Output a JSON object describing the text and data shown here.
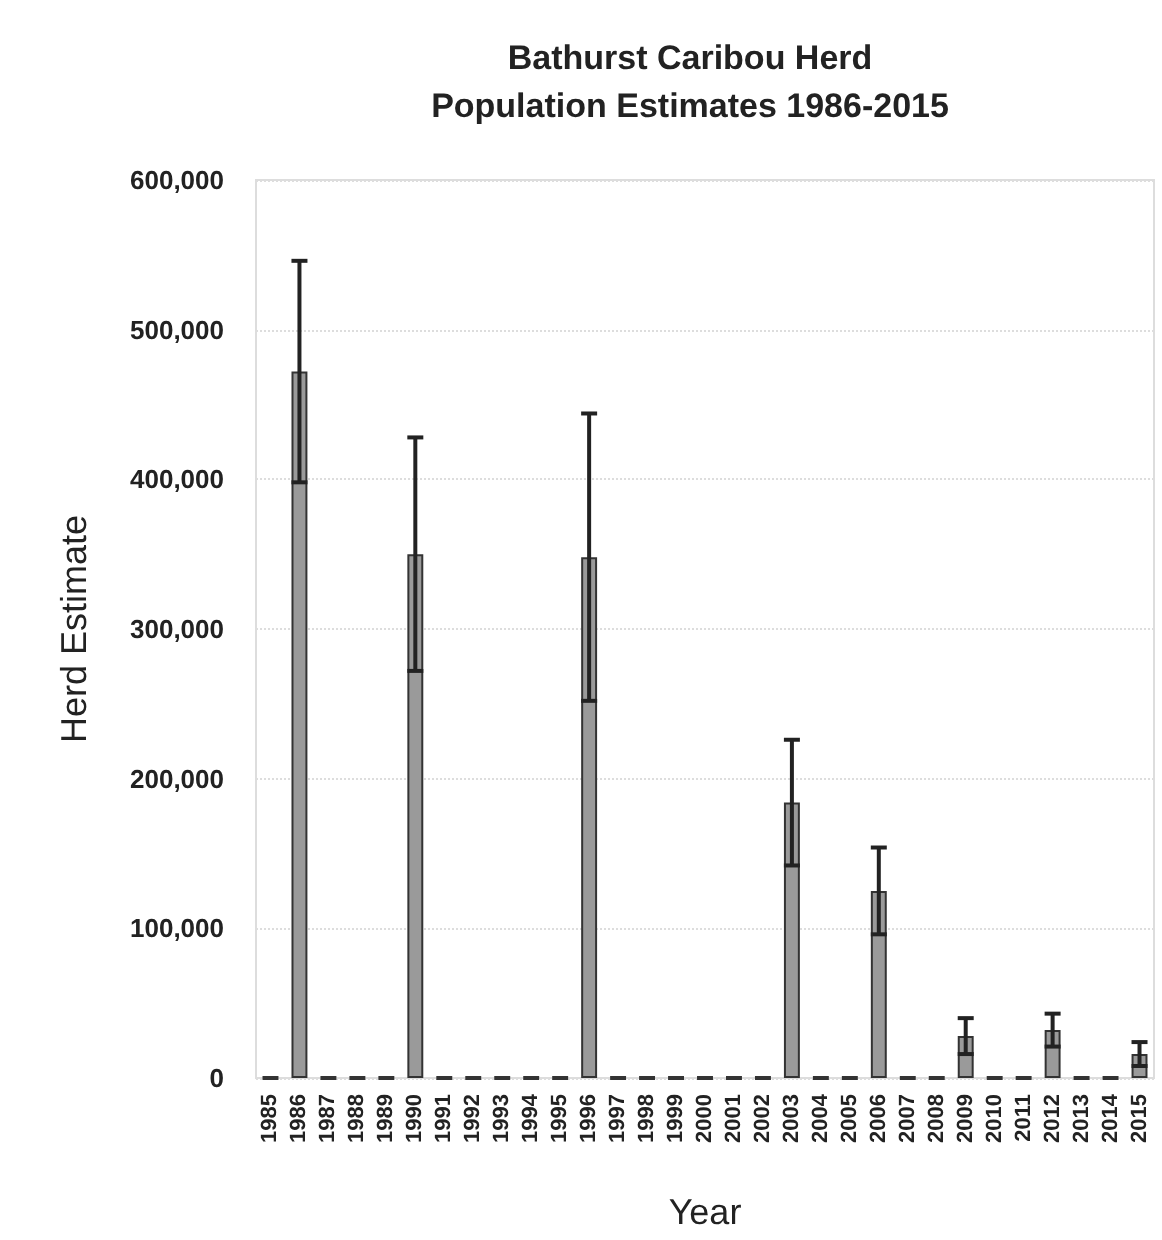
{
  "chart_data": {
    "type": "bar",
    "title": "Bathurst Caribou Herd\nPopulation Estimates 1986-2015",
    "xlabel": "Year",
    "ylabel": "Herd Estimate",
    "categories": [
      "1985",
      "1986",
      "1987",
      "1988",
      "1989",
      "1990",
      "1991",
      "1992",
      "1993",
      "1994",
      "1995",
      "1996",
      "1997",
      "1998",
      "1999",
      "2000",
      "2001",
      "2002",
      "2003",
      "2004",
      "2005",
      "2006",
      "2007",
      "2008",
      "2009",
      "2010",
      "2011",
      "2012",
      "2013",
      "2014",
      "2015"
    ],
    "values": [
      0,
      472000,
      0,
      0,
      0,
      350000,
      0,
      0,
      0,
      0,
      0,
      348000,
      0,
      0,
      0,
      0,
      0,
      0,
      184000,
      0,
      0,
      125000,
      0,
      0,
      28000,
      0,
      0,
      32000,
      0,
      0,
      16000
    ],
    "errors": [
      null,
      74000,
      null,
      null,
      null,
      78000,
      null,
      null,
      null,
      null,
      null,
      96000,
      null,
      null,
      null,
      null,
      null,
      null,
      42000,
      null,
      null,
      29000,
      null,
      null,
      12000,
      null,
      null,
      11000,
      null,
      null,
      8000
    ],
    "colors": [
      "#333333",
      "#9a9a9a",
      "#333333",
      "#333333",
      "#333333",
      "#9a9a9a",
      "#333333",
      "#333333",
      "#333333",
      "#333333",
      "#333333",
      "#9a9a9a",
      "#333333",
      "#333333",
      "#333333",
      "#333333",
      "#333333",
      "#333333",
      "#9a9a9a",
      "#333333",
      "#333333",
      "#9a9a9a",
      "#333333",
      "#333333",
      "#9a9a9a",
      "#333333",
      "#333333",
      "#9a9a9a",
      "#333333",
      "#333333",
      "#9a9a9a"
    ],
    "ylim": [
      0,
      600000
    ],
    "yticks": [
      {
        "value": 0,
        "label": "0"
      },
      {
        "value": 100000,
        "label": "100,000"
      },
      {
        "value": 200000,
        "label": "200,000"
      },
      {
        "value": 300000,
        "label": "300,000"
      },
      {
        "value": 400000,
        "label": "400,000"
      },
      {
        "value": 500000,
        "label": "500,000"
      },
      {
        "value": 600000,
        "label": "600,000"
      }
    ],
    "grid": "y"
  }
}
